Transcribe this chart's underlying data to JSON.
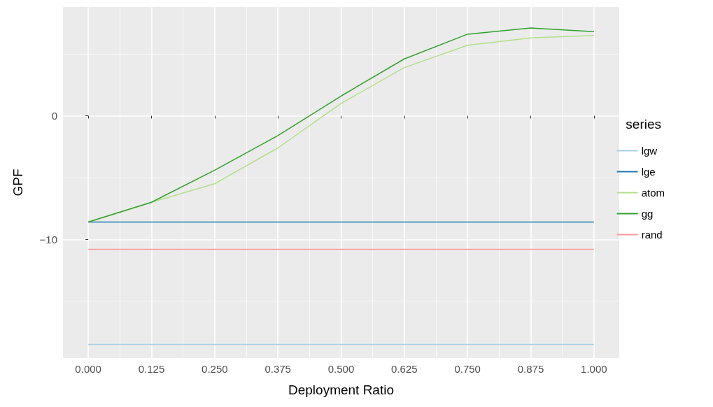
{
  "chart_data": {
    "type": "line",
    "xlabel": "Deployment Ratio",
    "ylabel": "GPF",
    "legend_title": "series",
    "legend": "right",
    "grid": true,
    "marker": "none",
    "line_style": "solid",
    "x": [
      0,
      0.125,
      0.25,
      0.375,
      0.5,
      0.625,
      0.75,
      0.875,
      1
    ],
    "xlim": [
      -0.05,
      1.05
    ],
    "xticks": [
      {
        "value": 0,
        "label": "0.000"
      },
      {
        "value": 0.125,
        "label": "0.125"
      },
      {
        "value": 0.25,
        "label": "0.250"
      },
      {
        "value": 0.375,
        "label": "0.375"
      },
      {
        "value": 0.5,
        "label": "0.500"
      },
      {
        "value": 0.625,
        "label": "0.625"
      },
      {
        "value": 0.75,
        "label": "0.750"
      },
      {
        "value": 0.875,
        "label": "0.875"
      },
      {
        "value": 1,
        "label": "1.000"
      }
    ],
    "ylim": [
      -19.6,
      8.8
    ],
    "yticks": [
      {
        "value": -10,
        "label": "−10"
      },
      0
    ],
    "series": [
      {
        "name": "lgw",
        "color": "#a6cee3",
        "values": [
          -18.5,
          -18.5,
          -18.5,
          -18.5,
          -18.5,
          -18.5,
          -18.5,
          -18.5,
          -18.5
        ]
      },
      {
        "name": "lge",
        "color": "#1f78b4",
        "values": [
          -8.6,
          -8.6,
          -8.6,
          -8.6,
          -8.6,
          -8.6,
          -8.6,
          -8.6,
          -8.6
        ]
      },
      {
        "name": "atom",
        "color": "#b2df8a",
        "values": [
          -8.6,
          -7.0,
          -5.5,
          -2.6,
          1.0,
          3.9,
          5.7,
          6.3,
          6.5
        ]
      },
      {
        "name": "gg",
        "color": "#33a02c",
        "values": [
          -8.6,
          -7.0,
          -4.4,
          -1.6,
          1.6,
          4.6,
          6.6,
          7.1,
          6.8
        ]
      },
      {
        "name": "rand",
        "color": "#fb9a99",
        "values": [
          -10.8,
          -10.8,
          -10.8,
          -10.8,
          -10.8,
          -10.8,
          -10.8,
          -10.8,
          -10.8
        ]
      }
    ]
  }
}
